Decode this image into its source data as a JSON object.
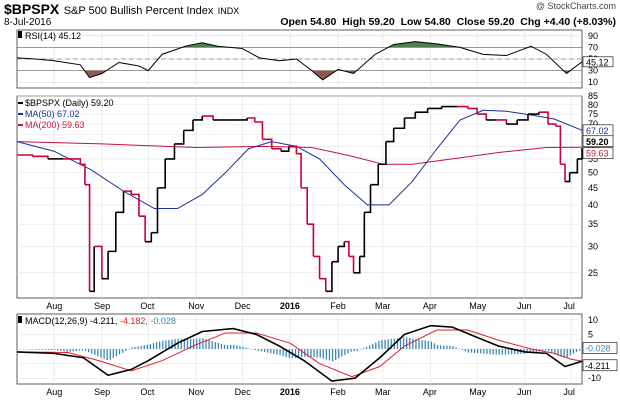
{
  "header": {
    "symbol": "$BPSPX",
    "name": "S&P 500 Bullish Percent Index",
    "exchange": "INDX",
    "date": "8-Jul-2016",
    "open_label": "Open",
    "open": "54.80",
    "high_label": "High",
    "high": "59.20",
    "low_label": "Low",
    "low": "54.80",
    "close_label": "Close",
    "close": "59.20",
    "chg_label": "Chg",
    "chg": "+4.40 (+8.03%)",
    "watermark": "@ StockCharts.com"
  },
  "colors": {
    "price_up": "#000000",
    "price_down": "#c8003c",
    "ma50": "#1f2f9a",
    "ma200": "#c8143c",
    "rsi_line": "#000000",
    "rsi_overbought_fill": "#4f7f4f",
    "rsi_oversold_fill": "#8b5a4a",
    "macd_line": "#000000",
    "signal_line": "#e0202a",
    "histogram": "#3a88b8"
  },
  "rsi_panel": {
    "legend": "RSI(14) 45.12",
    "badge": "45.12",
    "ticks": [
      "90",
      "70",
      "50",
      "30",
      "10"
    ]
  },
  "price_panel": {
    "legend_main": "$BPSPX (Daily) 59.20",
    "legend_ma50": "MA(50) 67.02",
    "legend_ma200": "MA(200) 59.63",
    "badge_close": "59.20",
    "badge_ma50": "67.02",
    "badge_ma200": "59.63",
    "ticks": [
      "85",
      "80",
      "75",
      "70",
      "65",
      "60",
      "55",
      "50",
      "45",
      "40",
      "35",
      "30",
      "25"
    ]
  },
  "macd_panel": {
    "legend_prefix": "MACD(12,26,9)",
    "legend_macd": "-4.211",
    "legend_signal": "-4.182",
    "legend_hist": "-0.028",
    "badge_hist": "-0.028",
    "badge_macd": "-4.211",
    "ticks": [
      "10",
      "5",
      "0",
      "-5",
      "-10"
    ]
  },
  "x_axis": {
    "months": [
      "Aug",
      "Sep",
      "Oct",
      "Nov",
      "Dec",
      "2016",
      "Feb",
      "Mar",
      "Apr",
      "May",
      "Jun",
      "Jul"
    ]
  },
  "chart_data": {
    "type": "line",
    "title": "$BPSPX S&P 500 Bullish Percent Index",
    "x_range": [
      "2015-07-08",
      "2016-07-08"
    ],
    "price": {
      "name": "$BPSPX (Daily)",
      "scale": "log",
      "ylim": [
        21,
        85
      ],
      "points": [
        [
          "2015-07-08",
          56.5
        ],
        [
          "2015-07-18",
          56
        ],
        [
          "2015-07-28",
          55
        ],
        [
          "2015-08-07",
          55
        ],
        [
          "2015-08-18",
          53
        ],
        [
          "2015-08-21",
          46
        ],
        [
          "2015-08-24",
          22
        ],
        [
          "2015-08-27",
          30
        ],
        [
          "2015-09-01",
          24
        ],
        [
          "2015-09-05",
          29
        ],
        [
          "2015-09-10",
          38
        ],
        [
          "2015-09-15",
          44
        ],
        [
          "2015-09-20",
          43
        ],
        [
          "2015-09-25",
          37
        ],
        [
          "2015-09-29",
          31
        ],
        [
          "2015-10-03",
          33
        ],
        [
          "2015-10-07",
          45
        ],
        [
          "2015-10-12",
          55
        ],
        [
          "2015-10-18",
          61
        ],
        [
          "2015-10-24",
          67
        ],
        [
          "2015-10-30",
          72
        ],
        [
          "2015-11-05",
          74
        ],
        [
          "2015-11-12",
          72
        ],
        [
          "2015-11-20",
          72
        ],
        [
          "2015-11-28",
          72
        ],
        [
          "2015-12-04",
          73
        ],
        [
          "2015-12-09",
          71
        ],
        [
          "2015-12-14",
          63
        ],
        [
          "2015-12-20",
          59
        ],
        [
          "2015-12-26",
          58
        ],
        [
          "2015-12-31",
          60
        ],
        [
          "2016-01-05",
          57
        ],
        [
          "2016-01-08",
          45
        ],
        [
          "2016-01-12",
          35
        ],
        [
          "2016-01-16",
          28
        ],
        [
          "2016-01-20",
          24
        ],
        [
          "2016-01-24",
          22
        ],
        [
          "2016-01-28",
          27
        ],
        [
          "2016-02-01",
          30
        ],
        [
          "2016-02-05",
          31
        ],
        [
          "2016-02-08",
          28
        ],
        [
          "2016-02-11",
          25
        ],
        [
          "2016-02-15",
          28
        ],
        [
          "2016-02-18",
          38
        ],
        [
          "2016-02-22",
          46
        ],
        [
          "2016-02-27",
          53
        ],
        [
          "2016-03-03",
          62
        ],
        [
          "2016-03-08",
          68
        ],
        [
          "2016-03-15",
          73
        ],
        [
          "2016-03-22",
          76
        ],
        [
          "2016-03-30",
          78
        ],
        [
          "2016-04-08",
          79
        ],
        [
          "2016-04-18",
          79
        ],
        [
          "2016-04-25",
          78
        ],
        [
          "2016-05-01",
          75
        ],
        [
          "2016-05-07",
          72
        ],
        [
          "2016-05-13",
          72
        ],
        [
          "2016-05-20",
          70
        ],
        [
          "2016-05-27",
          72
        ],
        [
          "2016-06-03",
          75
        ],
        [
          "2016-06-10",
          76
        ],
        [
          "2016-06-16",
          70
        ],
        [
          "2016-06-21",
          69
        ],
        [
          "2016-06-24",
          53
        ],
        [
          "2016-06-27",
          47
        ],
        [
          "2016-06-30",
          50
        ],
        [
          "2016-07-05",
          55
        ],
        [
          "2016-07-08",
          59.2
        ]
      ]
    },
    "ma50": {
      "name": "MA(50)",
      "points": [
        [
          "2015-07-08",
          62
        ],
        [
          "2015-08-01",
          58
        ],
        [
          "2015-08-25",
          51
        ],
        [
          "2015-09-15",
          44
        ],
        [
          "2015-10-05",
          39
        ],
        [
          "2015-10-20",
          39
        ],
        [
          "2015-11-05",
          43
        ],
        [
          "2015-11-20",
          50
        ],
        [
          "2015-12-05",
          59
        ],
        [
          "2015-12-20",
          62
        ],
        [
          "2016-01-05",
          60
        ],
        [
          "2016-01-20",
          55
        ],
        [
          "2016-02-05",
          46
        ],
        [
          "2016-02-20",
          40
        ],
        [
          "2016-03-05",
          40
        ],
        [
          "2016-03-20",
          47
        ],
        [
          "2016-04-05",
          59
        ],
        [
          "2016-04-20",
          72
        ],
        [
          "2016-05-05",
          77
        ],
        [
          "2016-05-20",
          76.5
        ],
        [
          "2016-06-05",
          74.5
        ],
        [
          "2016-06-20",
          72.5
        ],
        [
          "2016-07-08",
          67.02
        ]
      ]
    },
    "ma200": {
      "name": "MA(200)",
      "points": [
        [
          "2015-07-08",
          62
        ],
        [
          "2015-09-01",
          61
        ],
        [
          "2015-11-01",
          59.5
        ],
        [
          "2015-12-15",
          60
        ],
        [
          "2016-01-15",
          59.5
        ],
        [
          "2016-02-10",
          56
        ],
        [
          "2016-03-01",
          53
        ],
        [
          "2016-03-20",
          53
        ],
        [
          "2016-04-15",
          55
        ],
        [
          "2016-05-15",
          57.5
        ],
        [
          "2016-06-15",
          59.5
        ],
        [
          "2016-07-08",
          59.63
        ]
      ]
    },
    "rsi": {
      "name": "RSI(14)",
      "ylim": [
        0,
        100
      ],
      "levels": [
        70,
        50,
        30
      ],
      "points": [
        [
          "2015-07-08",
          52
        ],
        [
          "2015-07-20",
          50
        ],
        [
          "2015-08-01",
          47
        ],
        [
          "2015-08-18",
          40
        ],
        [
          "2015-08-24",
          18
        ],
        [
          "2015-09-01",
          25
        ],
        [
          "2015-09-12",
          44
        ],
        [
          "2015-09-25",
          38
        ],
        [
          "2015-10-01",
          30
        ],
        [
          "2015-10-10",
          58
        ],
        [
          "2015-10-25",
          72
        ],
        [
          "2015-11-05",
          78
        ],
        [
          "2015-11-15",
          72
        ],
        [
          "2015-12-01",
          68
        ],
        [
          "2015-12-12",
          52
        ],
        [
          "2015-12-25",
          47
        ],
        [
          "2016-01-05",
          50
        ],
        [
          "2016-01-15",
          30
        ],
        [
          "2016-01-22",
          14
        ],
        [
          "2016-02-01",
          32
        ],
        [
          "2016-02-11",
          25
        ],
        [
          "2016-02-25",
          58
        ],
        [
          "2016-03-08",
          75
        ],
        [
          "2016-03-22",
          80
        ],
        [
          "2016-04-05",
          76
        ],
        [
          "2016-04-20",
          70
        ],
        [
          "2016-05-05",
          58
        ],
        [
          "2016-05-20",
          56
        ],
        [
          "2016-06-05",
          72
        ],
        [
          "2016-06-15",
          58
        ],
        [
          "2016-06-24",
          35
        ],
        [
          "2016-06-28",
          25
        ],
        [
          "2016-07-08",
          45.12
        ]
      ]
    },
    "macd": {
      "name": "MACD(12,26,9)",
      "ylim": [
        -12,
        12
      ],
      "macd_points": [
        [
          "2015-07-08",
          -1
        ],
        [
          "2015-08-01",
          -1.5
        ],
        [
          "2015-08-20",
          -3
        ],
        [
          "2015-09-05",
          -9
        ],
        [
          "2015-09-20",
          -7
        ],
        [
          "2015-10-01",
          -4
        ],
        [
          "2015-10-20",
          2
        ],
        [
          "2015-11-05",
          6
        ],
        [
          "2015-11-25",
          7
        ],
        [
          "2015-12-10",
          5
        ],
        [
          "2015-12-25",
          1
        ],
        [
          "2016-01-10",
          -4
        ],
        [
          "2016-01-28",
          -11
        ],
        [
          "2016-02-12",
          -10
        ],
        [
          "2016-02-28",
          -3
        ],
        [
          "2016-03-15",
          5
        ],
        [
          "2016-04-01",
          8
        ],
        [
          "2016-04-15",
          7.5
        ],
        [
          "2016-05-01",
          4
        ],
        [
          "2016-05-15",
          1
        ],
        [
          "2016-06-01",
          -1
        ],
        [
          "2016-06-15",
          -1.5
        ],
        [
          "2016-06-27",
          -6
        ],
        [
          "2016-07-08",
          -4.211
        ]
      ],
      "signal_points": [
        [
          "2015-07-08",
          -1
        ],
        [
          "2015-08-10",
          -1.2
        ],
        [
          "2015-08-30",
          -4
        ],
        [
          "2015-09-20",
          -7.5
        ],
        [
          "2015-10-10",
          -4
        ],
        [
          "2015-10-30",
          1
        ],
        [
          "2015-11-20",
          5.5
        ],
        [
          "2015-12-10",
          5.5
        ],
        [
          "2016-01-01",
          2
        ],
        [
          "2016-01-20",
          -5
        ],
        [
          "2016-02-10",
          -9.5
        ],
        [
          "2016-02-28",
          -6
        ],
        [
          "2016-03-15",
          1
        ],
        [
          "2016-04-05",
          6.5
        ],
        [
          "2016-04-25",
          6.5
        ],
        [
          "2016-05-15",
          3
        ],
        [
          "2016-06-05",
          0
        ],
        [
          "2016-06-20",
          -1.5
        ],
        [
          "2016-07-01",
          -3.5
        ],
        [
          "2016-07-08",
          -4.182
        ]
      ],
      "hist_last": -0.028
    }
  }
}
